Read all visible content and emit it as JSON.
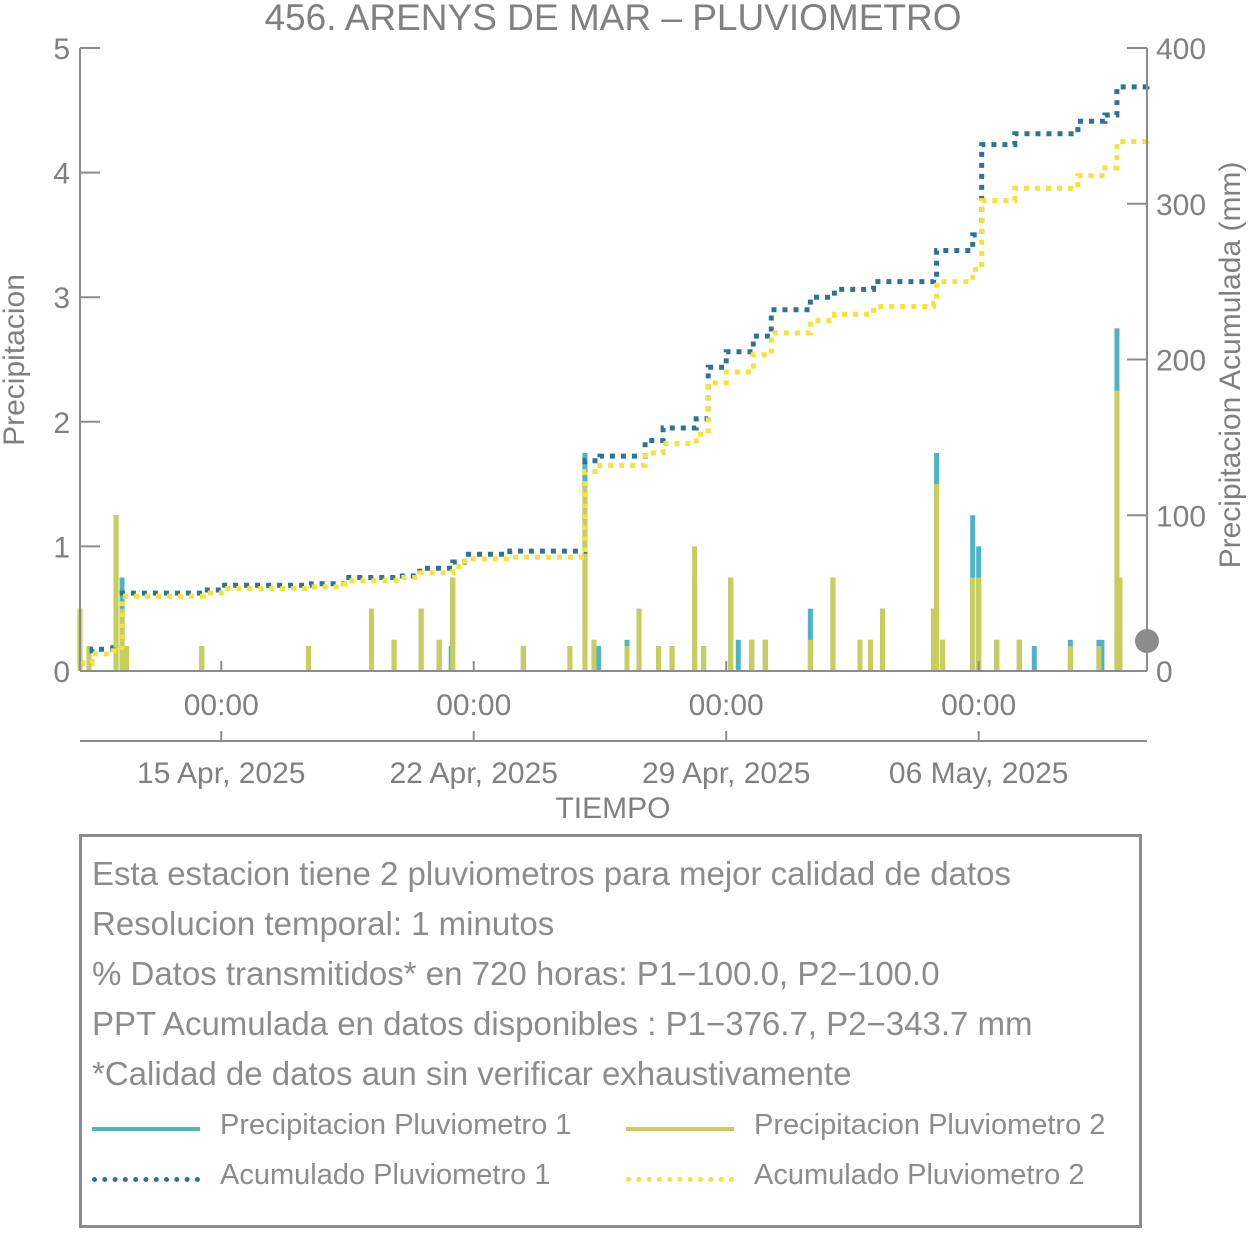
{
  "chart_data": {
    "type": "bar+line",
    "title": "456. ARENYS DE MAR – PLUVIOMETRO",
    "xlabel": "TIEMPO",
    "ylabel_left": "Precipitacion",
    "ylabel_right": "Precipitacion Acumulada (mm)",
    "ylim_left": [
      0,
      5
    ],
    "ylim_right": [
      0,
      400
    ],
    "yticks_left": [
      "0",
      "1",
      "2",
      "3",
      "4",
      "5"
    ],
    "yticks_right": [
      "0",
      "100",
      "200",
      "300",
      "400"
    ],
    "xlim": [
      "2025-04-11T02:00",
      "2025-05-10T16:00"
    ],
    "x_ticks": [
      {
        "x": "2025-04-15T00:00",
        "time": "00:00",
        "date": "15 Apr, 2025"
      },
      {
        "x": "2025-04-22T00:00",
        "time": "00:00",
        "date": "22 Apr, 2025"
      },
      {
        "x": "2025-04-29T00:00",
        "time": "00:00",
        "date": "29 Apr, 2025"
      },
      {
        "x": "2025-05-06T00:00",
        "time": "00:00",
        "date": "06 May, 2025"
      }
    ],
    "grid": false,
    "colors": {
      "p1": "#4fb3c6",
      "p2": "#c8ce5c",
      "a1": "#2e7394",
      "a2": "#f5e23a",
      "axis": "#8c8c8c",
      "text": "#808080"
    },
    "series": [
      {
        "name": "Precipitacion Pluviometro 1",
        "kind": "bar",
        "axis": "left",
        "points": [
          [
            "2025-04-11T02:00",
            0.5
          ],
          [
            "2025-04-11T08:00",
            0.2
          ],
          [
            "2025-04-12T02:00",
            1.25
          ],
          [
            "2025-04-12T06:00",
            0.75
          ],
          [
            "2025-04-12T09:00",
            0.2
          ],
          [
            "2025-04-14T11:00",
            0.2
          ],
          [
            "2025-04-17T10:00",
            0.2
          ],
          [
            "2025-04-19T04:00",
            0.5
          ],
          [
            "2025-04-19T19:00",
            0.25
          ],
          [
            "2025-04-20T13:00",
            0.5
          ],
          [
            "2025-04-21T01:00",
            0.25
          ],
          [
            "2025-04-21T09:00",
            0.2
          ],
          [
            "2025-04-21T10:00",
            0.75
          ],
          [
            "2025-04-23T09:00",
            0.2
          ],
          [
            "2025-04-24T16:00",
            0.2
          ],
          [
            "2025-04-25T02:00",
            1.75
          ],
          [
            "2025-04-25T08:00",
            0.25
          ],
          [
            "2025-04-25T11:00",
            0.2
          ],
          [
            "2025-04-26T06:00",
            0.25
          ],
          [
            "2025-04-26T14:00",
            0.5
          ],
          [
            "2025-04-27T03:00",
            0.2
          ],
          [
            "2025-04-27T12:00",
            0.2
          ],
          [
            "2025-04-28T03:00",
            0.75
          ],
          [
            "2025-04-28T09:00",
            0.2
          ],
          [
            "2025-04-29T03:00",
            0.75
          ],
          [
            "2025-04-29T08:00",
            0.25
          ],
          [
            "2025-04-29T17:00",
            0.25
          ],
          [
            "2025-04-30T02:00",
            0.25
          ],
          [
            "2025-05-01T08:00",
            0.5
          ],
          [
            "2025-05-01T23:00",
            0.75
          ],
          [
            "2025-05-02T17:00",
            0.25
          ],
          [
            "2025-05-03T00:00",
            0.25
          ],
          [
            "2025-05-03T08:00",
            0.5
          ],
          [
            "2025-05-04T18:00",
            0.5
          ],
          [
            "2025-05-04T20:00",
            1.75
          ],
          [
            "2025-05-05T00:00",
            0.25
          ],
          [
            "2025-05-05T20:00",
            1.25
          ],
          [
            "2025-05-06T00:00",
            1.0
          ],
          [
            "2025-05-06T12:00",
            0.25
          ],
          [
            "2025-05-07T03:00",
            0.25
          ],
          [
            "2025-05-07T13:00",
            0.2
          ],
          [
            "2025-05-08T13:00",
            0.25
          ],
          [
            "2025-05-09T08:00",
            0.25
          ],
          [
            "2025-05-09T10:00",
            0.25
          ],
          [
            "2025-05-09T20:00",
            2.75
          ],
          [
            "2025-05-09T22:00",
            0.2
          ]
        ]
      },
      {
        "name": "Precipitacion Pluviometro 2",
        "kind": "bar",
        "axis": "left",
        "points": [
          [
            "2025-04-11T02:00",
            0.5
          ],
          [
            "2025-04-11T08:00",
            0.2
          ],
          [
            "2025-04-12T02:00",
            1.25
          ],
          [
            "2025-04-12T06:00",
            0.5
          ],
          [
            "2025-04-12T09:00",
            0.2
          ],
          [
            "2025-04-14T11:00",
            0.2
          ],
          [
            "2025-04-17T10:00",
            0.2
          ],
          [
            "2025-04-19T04:00",
            0.5
          ],
          [
            "2025-04-19T19:00",
            0.25
          ],
          [
            "2025-04-20T13:00",
            0.5
          ],
          [
            "2025-04-21T01:00",
            0.25
          ],
          [
            "2025-04-21T10:00",
            0.75
          ],
          [
            "2025-04-23T09:00",
            0.2
          ],
          [
            "2025-04-24T16:00",
            0.2
          ],
          [
            "2025-04-25T02:00",
            1.5
          ],
          [
            "2025-04-25T08:00",
            0.25
          ],
          [
            "2025-04-26T06:00",
            0.2
          ],
          [
            "2025-04-26T14:00",
            0.5
          ],
          [
            "2025-04-27T03:00",
            0.2
          ],
          [
            "2025-04-27T12:00",
            0.2
          ],
          [
            "2025-04-28T03:00",
            1.0
          ],
          [
            "2025-04-28T09:00",
            0.2
          ],
          [
            "2025-04-29T03:00",
            0.75
          ],
          [
            "2025-04-29T17:00",
            0.25
          ],
          [
            "2025-04-30T02:00",
            0.25
          ],
          [
            "2025-05-01T08:00",
            0.25
          ],
          [
            "2025-05-01T23:00",
            0.75
          ],
          [
            "2025-05-02T17:00",
            0.25
          ],
          [
            "2025-05-03T00:00",
            0.25
          ],
          [
            "2025-05-03T08:00",
            0.5
          ],
          [
            "2025-05-04T18:00",
            0.5
          ],
          [
            "2025-05-04T20:00",
            1.5
          ],
          [
            "2025-05-05T00:00",
            0.25
          ],
          [
            "2025-05-05T20:00",
            0.75
          ],
          [
            "2025-05-06T00:00",
            0.75
          ],
          [
            "2025-05-06T12:00",
            0.25
          ],
          [
            "2025-05-07T03:00",
            0.25
          ],
          [
            "2025-05-08T13:00",
            0.2
          ],
          [
            "2025-05-09T08:00",
            0.2
          ],
          [
            "2025-05-09T20:00",
            2.25
          ],
          [
            "2025-05-09T22:00",
            0.75
          ]
        ]
      },
      {
        "name": "Acumulado Pluviometro 1",
        "kind": "line",
        "axis": "right",
        "points": [
          [
            "2025-04-11T02:00",
            5
          ],
          [
            "2025-04-11T10:00",
            14
          ],
          [
            "2025-04-12T00:00",
            15
          ],
          [
            "2025-04-12T06:00",
            50
          ],
          [
            "2025-04-14T12:00",
            52
          ],
          [
            "2025-04-15T00:00",
            55
          ],
          [
            "2025-04-17T12:00",
            56
          ],
          [
            "2025-04-18T10:00",
            60
          ],
          [
            "2025-04-19T22:00",
            61
          ],
          [
            "2025-04-20T12:00",
            66
          ],
          [
            "2025-04-21T10:00",
            70
          ],
          [
            "2025-04-21T18:00",
            75
          ],
          [
            "2025-04-23T00:00",
            77
          ],
          [
            "2025-04-24T20:00",
            77
          ],
          [
            "2025-04-25T02:00",
            135
          ],
          [
            "2025-04-25T12:00",
            138
          ],
          [
            "2025-04-26T18:00",
            148
          ],
          [
            "2025-04-27T06:00",
            156
          ],
          [
            "2025-04-28T04:00",
            162
          ],
          [
            "2025-04-28T12:00",
            195
          ],
          [
            "2025-04-29T00:00",
            205
          ],
          [
            "2025-04-29T18:00",
            215
          ],
          [
            "2025-04-30T06:00",
            232
          ],
          [
            "2025-05-01T08:00",
            240
          ],
          [
            "2025-05-02T00:00",
            245
          ],
          [
            "2025-05-03T02:00",
            250
          ],
          [
            "2025-05-04T18:00",
            252
          ],
          [
            "2025-05-04T20:00",
            270
          ],
          [
            "2025-05-05T20:00",
            280
          ],
          [
            "2025-05-06T02:00",
            338
          ],
          [
            "2025-05-07T00:00",
            345
          ],
          [
            "2025-05-08T18:00",
            353
          ],
          [
            "2025-05-09T12:00",
            357
          ],
          [
            "2025-05-09T20:00",
            375
          ],
          [
            "2025-05-10T16:00",
            377
          ]
        ]
      },
      {
        "name": "Acumulado Pluviometro 2",
        "kind": "line",
        "axis": "right",
        "points": [
          [
            "2025-04-11T02:00",
            5
          ],
          [
            "2025-04-11T10:00",
            11
          ],
          [
            "2025-04-12T00:00",
            13
          ],
          [
            "2025-04-12T06:00",
            48
          ],
          [
            "2025-04-14T12:00",
            50
          ],
          [
            "2025-04-15T00:00",
            53
          ],
          [
            "2025-04-17T12:00",
            54
          ],
          [
            "2025-04-18T10:00",
            58
          ],
          [
            "2025-04-19T22:00",
            60
          ],
          [
            "2025-04-20T12:00",
            63
          ],
          [
            "2025-04-21T10:00",
            67
          ],
          [
            "2025-04-21T18:00",
            72
          ],
          [
            "2025-04-23T00:00",
            73
          ],
          [
            "2025-04-24T20:00",
            73
          ],
          [
            "2025-04-25T02:00",
            128
          ],
          [
            "2025-04-25T12:00",
            132
          ],
          [
            "2025-04-26T18:00",
            140
          ],
          [
            "2025-04-27T06:00",
            146
          ],
          [
            "2025-04-28T04:00",
            152
          ],
          [
            "2025-04-28T12:00",
            185
          ],
          [
            "2025-04-29T00:00",
            192
          ],
          [
            "2025-04-29T18:00",
            203
          ],
          [
            "2025-04-30T06:00",
            217
          ],
          [
            "2025-05-01T08:00",
            225
          ],
          [
            "2025-05-02T00:00",
            229
          ],
          [
            "2025-05-03T02:00",
            234
          ],
          [
            "2025-05-04T18:00",
            236
          ],
          [
            "2025-05-04T20:00",
            250
          ],
          [
            "2025-05-05T20:00",
            258
          ],
          [
            "2025-05-06T02:00",
            302
          ],
          [
            "2025-05-07T00:00",
            310
          ],
          [
            "2025-05-08T18:00",
            318
          ],
          [
            "2025-05-09T12:00",
            323
          ],
          [
            "2025-05-09T20:00",
            340
          ],
          [
            "2025-05-10T16:00",
            344
          ]
        ]
      }
    ]
  },
  "info": {
    "lines": [
      "Esta estacion tiene 2 pluviometros para mejor calidad de datos",
      "Resolucion temporal: 1 minutos",
      "% Datos transmitidos* en 720 horas: P1−100.0, P2−100.0",
      "PPT Acumulada en datos disponibles : P1−376.7, P2−343.7 mm",
      "*Calidad de datos aun sin verificar exhaustivamente"
    ],
    "legend": [
      {
        "label": "Precipitacion Pluviometro 1",
        "color": "#4fb3c6",
        "style": "solid"
      },
      {
        "label": "Precipitacion Pluviometro 2",
        "color": "#c8ce5c",
        "style": "solid"
      },
      {
        "label": "Acumulado Pluviometro 1",
        "color": "#2e7394",
        "style": "dotted"
      },
      {
        "label": "Acumulado Pluviometro 2",
        "color": "#f5e23a",
        "style": "dotted"
      }
    ]
  }
}
